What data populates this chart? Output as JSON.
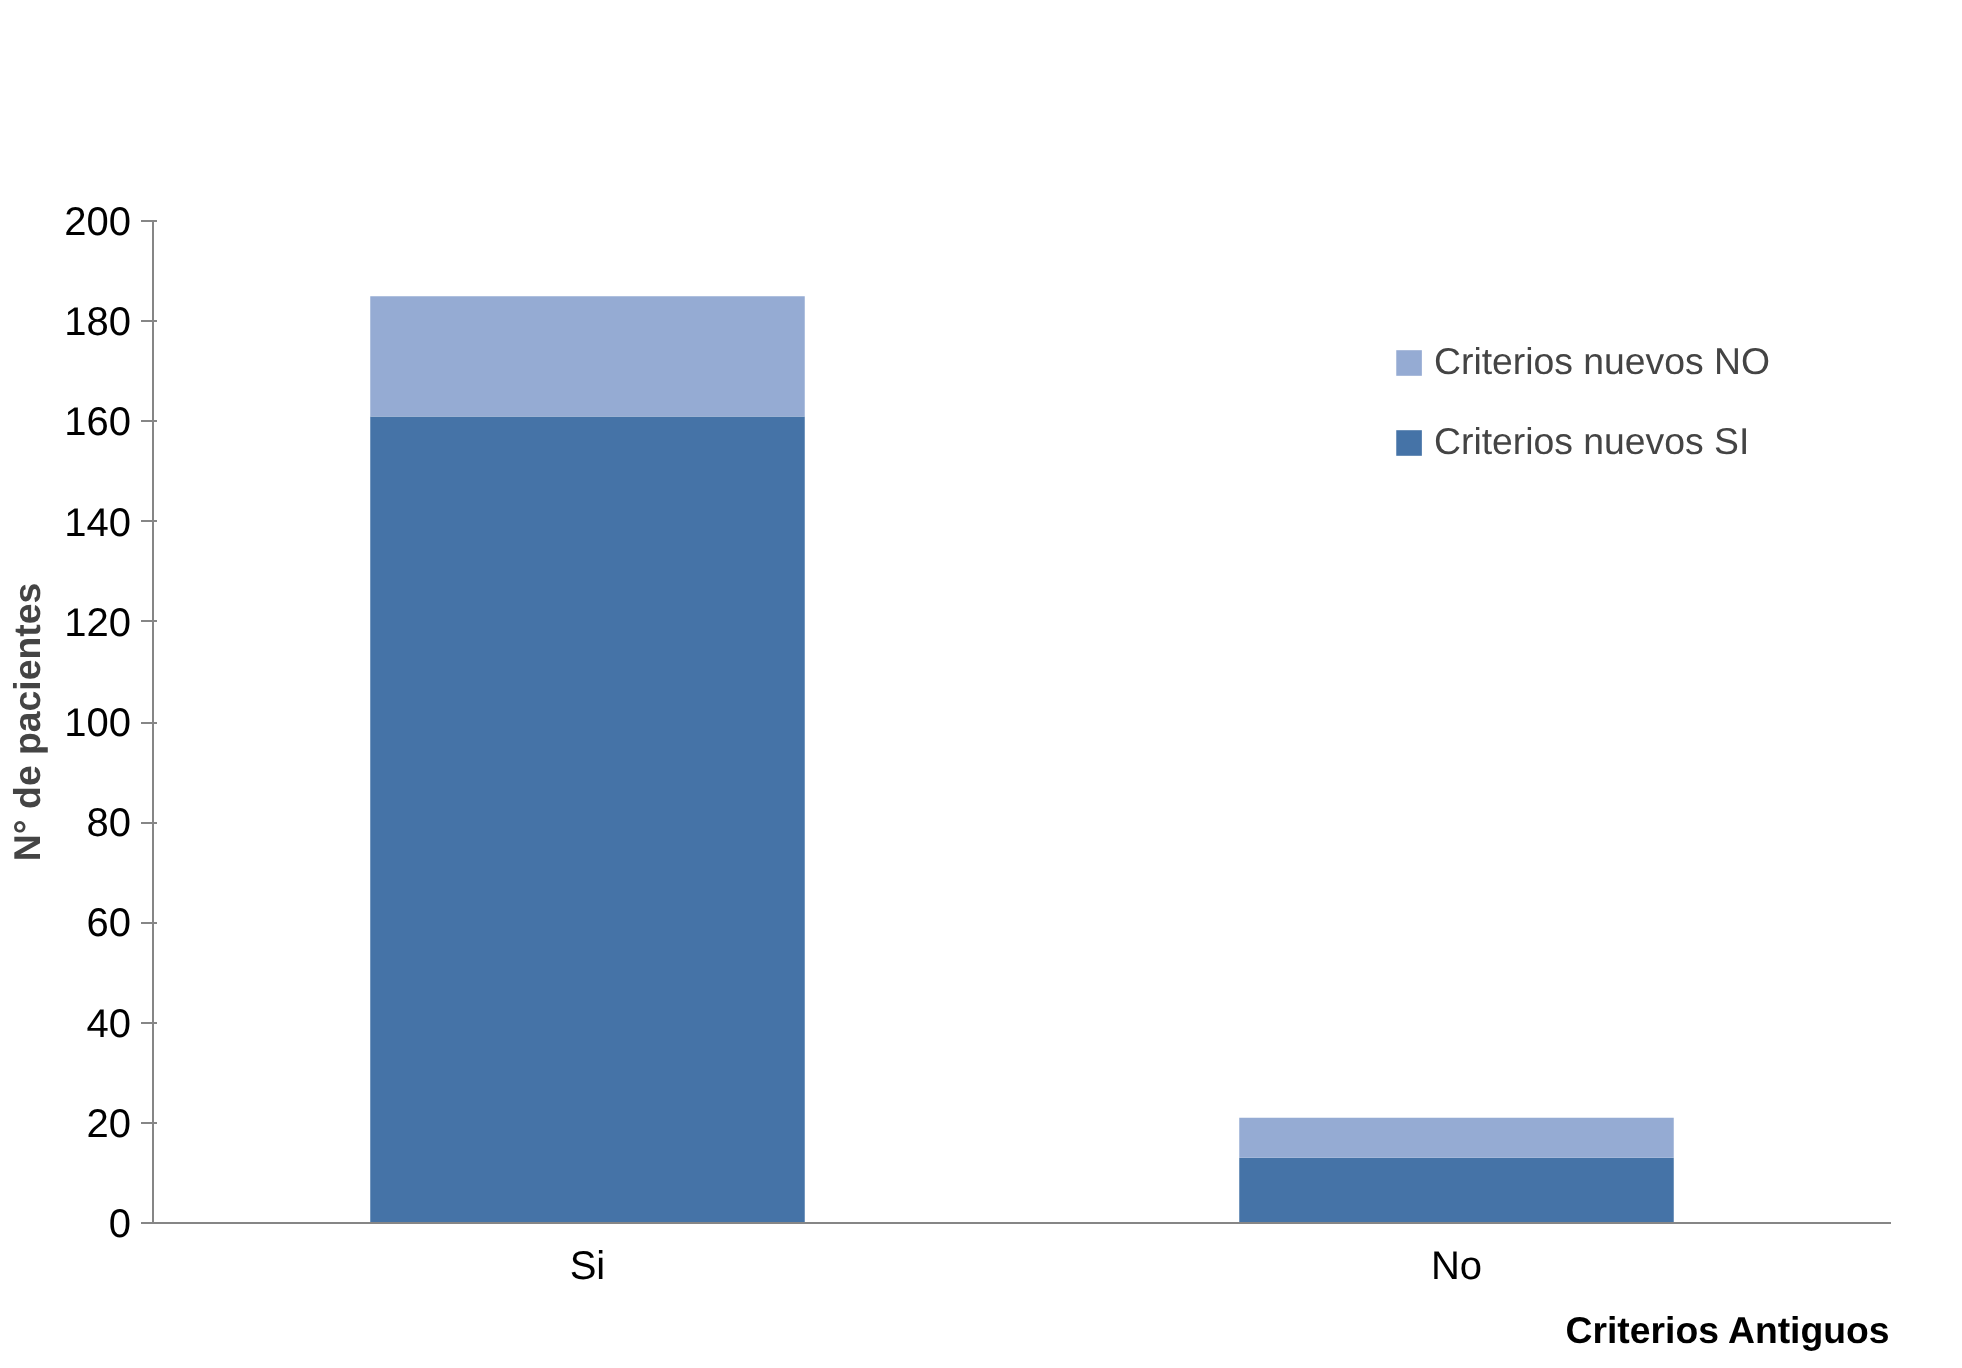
{
  "chart_data": {
    "type": "bar",
    "stacked": true,
    "xlabel": "Criterios Antiguos",
    "ylabel": "N° de pacientes",
    "categories": [
      "Si",
      "No"
    ],
    "series": [
      {
        "name": "Criterios nuevos SI",
        "color": "#4573a7",
        "values": [
          161,
          13
        ]
      },
      {
        "name": "Criterios nuevos NO",
        "color": "#95abd3",
        "values": [
          24,
          8
        ]
      }
    ],
    "ylim": [
      0,
      200
    ],
    "yticks": [
      0,
      20,
      40,
      60,
      80,
      100,
      120,
      140,
      160,
      180,
      200
    ],
    "grid": false,
    "legend": "top right"
  }
}
